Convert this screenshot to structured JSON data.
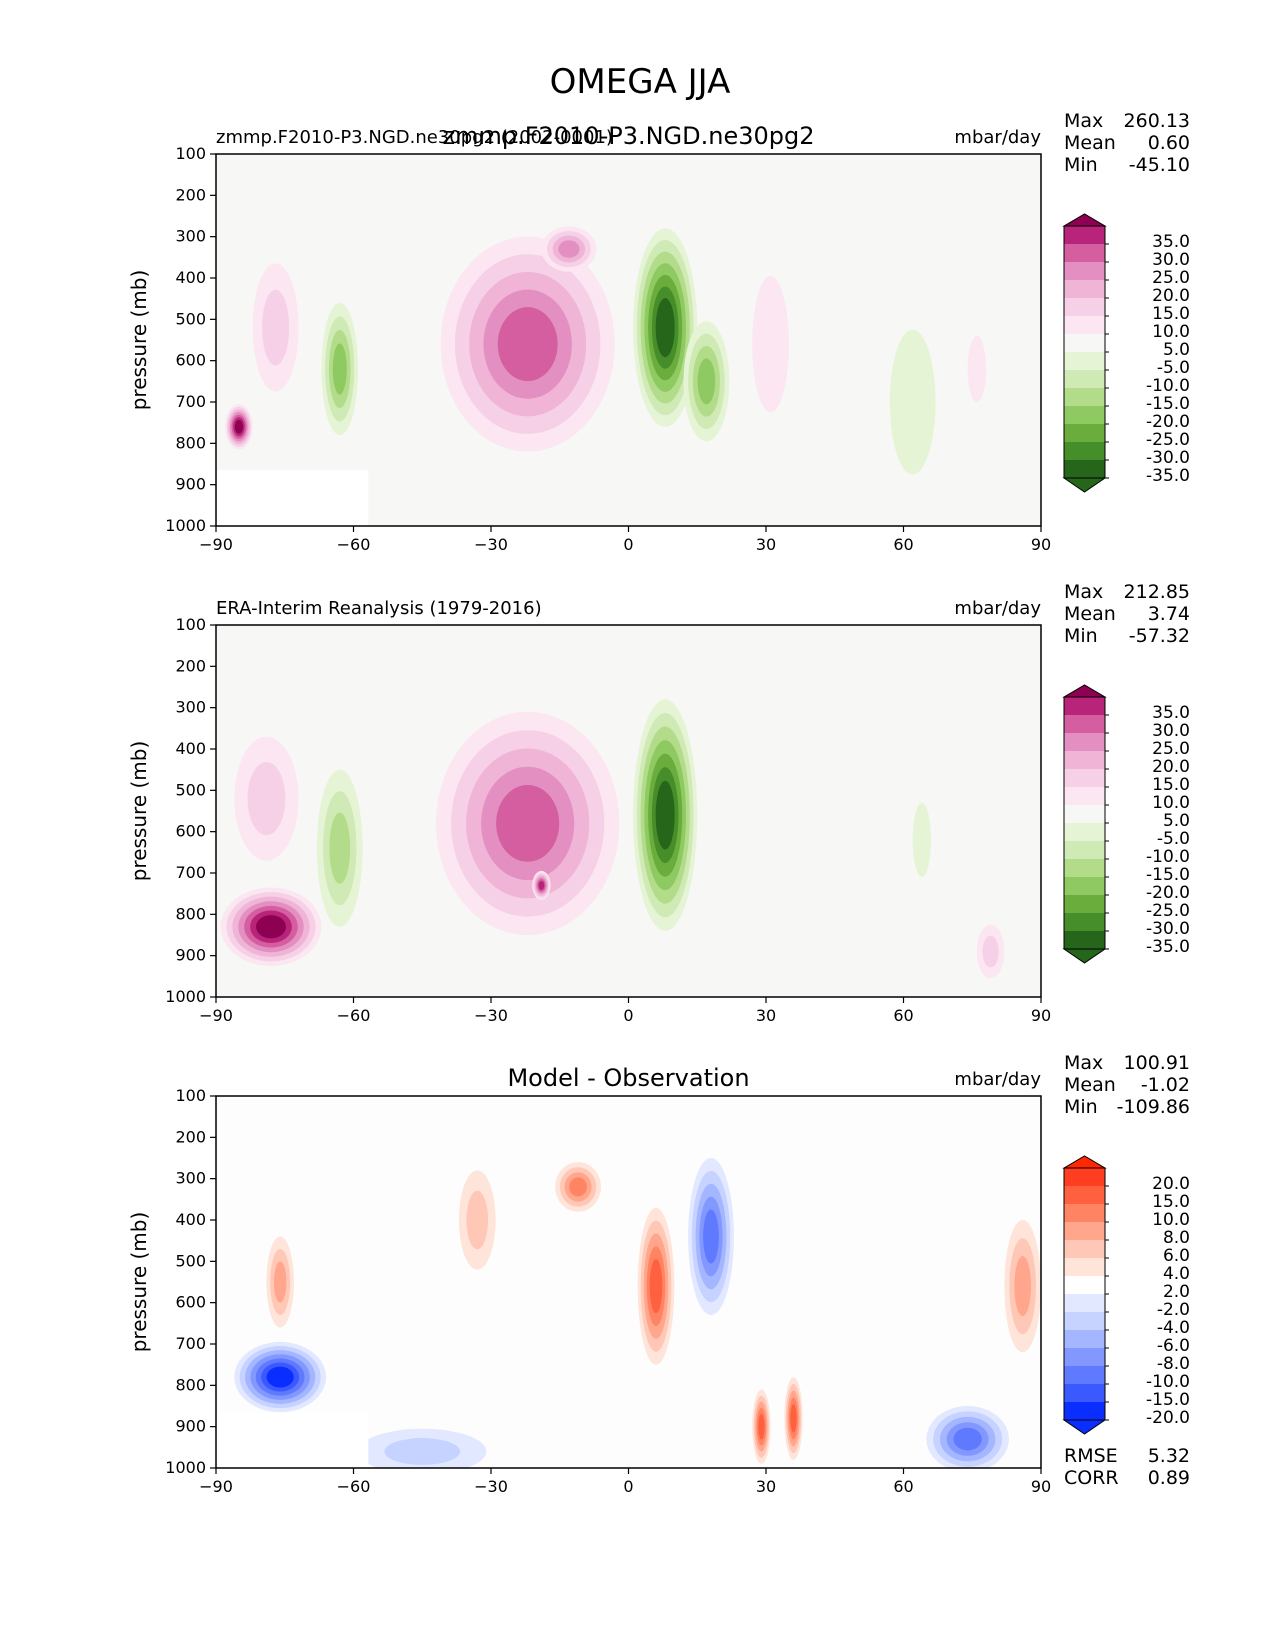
{
  "page_title": "OMEGA JJA",
  "colors": {
    "pink": [
      "#fbe6f2",
      "#f6d0e6",
      "#efb4d6",
      "#e38fc1",
      "#d45e9f",
      "#b8247a",
      "#8e0051"
    ],
    "green": [
      "#e6f4d6",
      "#cfeab4",
      "#b2dc8a",
      "#8fc962",
      "#6aad3d",
      "#468e29",
      "#25661b"
    ],
    "red": [
      "#ffe4da",
      "#ffc8b6",
      "#ffa68c",
      "#ff8464",
      "#ff6040",
      "#ff3d20",
      "#ff2800"
    ],
    "blue": [
      "#e2e8ff",
      "#c6d2ff",
      "#a4b6ff",
      "#8398ff",
      "#5f7aff",
      "#3a5aff",
      "#0a2eff"
    ],
    "bg": "#f7f7f5",
    "mask": "#ffffff"
  },
  "panels": [
    {
      "left_title": "zmmp.F2010-P3.NGD.ne30pg2 (2002-0001)",
      "center_title": "zmmp.F2010-P3.NGD.ne30pg2",
      "units": "mbar/day",
      "stats": [
        {
          "label": "Max",
          "value": "260.13"
        },
        {
          "label": "Mean",
          "value": "0.60"
        },
        {
          "label": "Min",
          "value": "-45.10"
        }
      ],
      "colorbar": {
        "palette": "omega",
        "labels": [
          "35.0",
          "30.0",
          "25.0",
          "20.0",
          "15.0",
          "10.0",
          "5.0",
          "-5.0",
          "-10.0",
          "-15.0",
          "-20.0",
          "-25.0",
          "-30.0",
          "-35.0"
        ]
      }
    },
    {
      "left_title": "ERA-Interim Reanalysis (1979-2016)",
      "center_title": "",
      "units": "mbar/day",
      "stats": [
        {
          "label": "Max",
          "value": "212.85"
        },
        {
          "label": "Mean",
          "value": "3.74"
        },
        {
          "label": "Min",
          "value": "-57.32"
        }
      ],
      "colorbar": {
        "palette": "omega",
        "labels": [
          "35.0",
          "30.0",
          "25.0",
          "20.0",
          "15.0",
          "10.0",
          "5.0",
          "-5.0",
          "-10.0",
          "-15.0",
          "-20.0",
          "-25.0",
          "-30.0",
          "-35.0"
        ]
      }
    },
    {
      "left_title": "",
      "center_title": "Model - Observation",
      "units": "mbar/day",
      "stats": [
        {
          "label": "Max",
          "value": "100.91"
        },
        {
          "label": "Mean",
          "value": "-1.02"
        },
        {
          "label": "Min",
          "value": "-109.86"
        }
      ],
      "colorbar": {
        "palette": "diff",
        "labels": [
          "20.0",
          "15.0",
          "10.0",
          "8.0",
          "6.0",
          "4.0",
          "2.0",
          "-2.0",
          "-4.0",
          "-6.0",
          "-8.0",
          "-10.0",
          "-15.0",
          "-20.0"
        ]
      },
      "extra_stats": [
        {
          "label": "RMSE",
          "value": "5.32"
        },
        {
          "label": "CORR",
          "value": "0.89"
        }
      ]
    }
  ],
  "chart_data": {
    "type": "heatmap",
    "title": "OMEGA JJA",
    "xlabel": "",
    "ylabel": "pressure (mb)",
    "xlim": [
      -90,
      90
    ],
    "ylim": [
      1000,
      100
    ],
    "x_ticks": [
      -90,
      -60,
      -30,
      0,
      30,
      60,
      90
    ],
    "y_ticks": [
      100,
      200,
      300,
      400,
      500,
      600,
      700,
      800,
      900,
      1000
    ],
    "features": [
      [
        {
          "lat": -22,
          "p": 560,
          "wlat": 19,
          "wp": 520,
          "value": 26
        },
        {
          "lat": -13,
          "p": 330,
          "wlat": 6,
          "wp": 110,
          "value": 22
        },
        {
          "lat": 8,
          "p": 520,
          "wlat": 7,
          "wp": 480,
          "value": -35
        },
        {
          "lat": 17,
          "p": 650,
          "wlat": 5,
          "wp": 290,
          "value": -22
        },
        {
          "lat": -85,
          "p": 760,
          "wlat": 3,
          "wp": 110,
          "value": 45
        },
        {
          "lat": -77,
          "p": 520,
          "wlat": 5,
          "wp": 310,
          "value": 11
        },
        {
          "lat": -63,
          "p": 620,
          "wlat": 4,
          "wp": 320,
          "value": -24
        },
        {
          "lat": 31,
          "p": 560,
          "wlat": 4,
          "wp": 330,
          "value": 7
        },
        {
          "lat": 62,
          "p": 700,
          "wlat": 5,
          "wp": 350,
          "value": -6
        },
        {
          "lat": 76,
          "p": 620,
          "wlat": 2,
          "wp": 160,
          "value": 6
        }
      ],
      [
        {
          "lat": -22,
          "p": 580,
          "wlat": 20,
          "wp": 540,
          "value": 26
        },
        {
          "lat": -19,
          "p": 730,
          "wlat": 2,
          "wp": 70,
          "value": 33
        },
        {
          "lat": 8,
          "p": 560,
          "wlat": 7,
          "wp": 560,
          "value": -36
        },
        {
          "lat": -78,
          "p": 830,
          "wlat": 11,
          "wp": 190,
          "value": 45
        },
        {
          "lat": -79,
          "p": 520,
          "wlat": 7,
          "wp": 300,
          "value": 11
        },
        {
          "lat": -63,
          "p": 640,
          "wlat": 5,
          "wp": 380,
          "value": -18
        },
        {
          "lat": 64,
          "p": 620,
          "wlat": 2,
          "wp": 180,
          "value": -6
        },
        {
          "lat": 79,
          "p": 890,
          "wlat": 3,
          "wp": 130,
          "value": 12
        }
      ],
      [
        {
          "lat": 18,
          "p": 440,
          "wlat": 5,
          "wp": 380,
          "value": -14
        },
        {
          "lat": 6,
          "p": 560,
          "wlat": 4,
          "wp": 380,
          "value": 12
        },
        {
          "lat": -11,
          "p": 320,
          "wlat": 5,
          "wp": 120,
          "value": 9
        },
        {
          "lat": -33,
          "p": 400,
          "wlat": 4,
          "wp": 240,
          "value": 5
        },
        {
          "lat": -76,
          "p": 780,
          "wlat": 10,
          "wp": 170,
          "value": -22
        },
        {
          "lat": -76,
          "p": 550,
          "wlat": 3,
          "wp": 220,
          "value": 7
        },
        {
          "lat": 29,
          "p": 900,
          "wlat": 2,
          "wp": 180,
          "value": 12
        },
        {
          "lat": 36,
          "p": 880,
          "wlat": 2,
          "wp": 200,
          "value": 10
        },
        {
          "lat": 74,
          "p": 930,
          "wlat": 9,
          "wp": 160,
          "value": -11
        },
        {
          "lat": 86,
          "p": 560,
          "wlat": 4,
          "wp": 320,
          "value": 6
        },
        {
          "lat": -45,
          "p": 960,
          "wlat": 14,
          "wp": 110,
          "value": -5
        }
      ]
    ]
  }
}
